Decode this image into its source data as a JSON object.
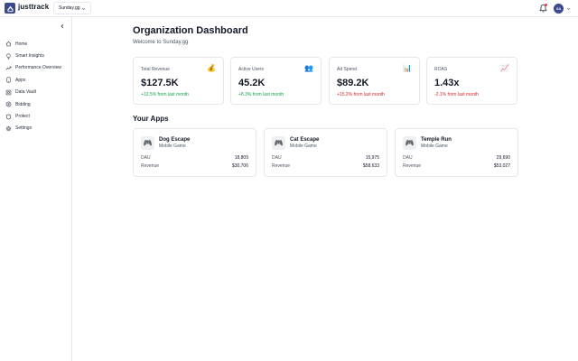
{
  "brand": {
    "name": "justtrack",
    "logo_icon": "arrow-logo-icon",
    "accent": "#3b4a8c"
  },
  "header": {
    "org_selector_value": "Sunday.gg",
    "notification_icon": "bell-icon",
    "avatar_initials": "GA"
  },
  "sidebar": {
    "items": [
      {
        "label": "Home",
        "icon": "home-icon"
      },
      {
        "label": "Smart Insights",
        "icon": "lightbulb-icon"
      },
      {
        "label": "Performance Overview",
        "icon": "trend-icon"
      },
      {
        "label": "Apps",
        "icon": "apps-icon"
      },
      {
        "label": "Data Vault",
        "icon": "database-icon"
      },
      {
        "label": "Bidding",
        "icon": "bidding-icon"
      },
      {
        "label": "Protect",
        "icon": "shield-icon"
      },
      {
        "label": "Settings",
        "icon": "gear-icon"
      }
    ]
  },
  "main": {
    "title": "Organization Dashboard",
    "subtitle": "Welcome to Sunday.gg",
    "stats": [
      {
        "label": "Total Revenue",
        "emoji": "💰",
        "value": "$127.5K",
        "change": "+12.5% from last month",
        "trend": "up"
      },
      {
        "label": "Active Users",
        "emoji": "👥",
        "value": "45.2K",
        "change": "+8.3% from last month",
        "trend": "up"
      },
      {
        "label": "Ad Spend",
        "emoji": "📊",
        "value": "$89.2K",
        "change": "+15.2% from last month",
        "trend": "down"
      },
      {
        "label": "ROAS",
        "emoji": "📈",
        "value": "1.43x",
        "change": "-2.1% from last month",
        "trend": "down"
      }
    ],
    "apps_title": "Your Apps",
    "apps": [
      {
        "name": "Dog Escape",
        "type": "Mobile Game",
        "emoji": "🎮",
        "dau_label": "DAU",
        "dau": "18,809",
        "revenue_label": "Revenue",
        "revenue": "$30,706"
      },
      {
        "name": "Cat Escape",
        "type": "Mobile Game",
        "emoji": "🎮",
        "dau_label": "DAU",
        "dau": "15,975",
        "revenue_label": "Revenue",
        "revenue": "$58,633"
      },
      {
        "name": "Temple Run",
        "type": "Mobile Game",
        "emoji": "🎮",
        "dau_label": "DAU",
        "dau": "29,690",
        "revenue_label": "Revenue",
        "revenue": "$53,027"
      }
    ]
  }
}
